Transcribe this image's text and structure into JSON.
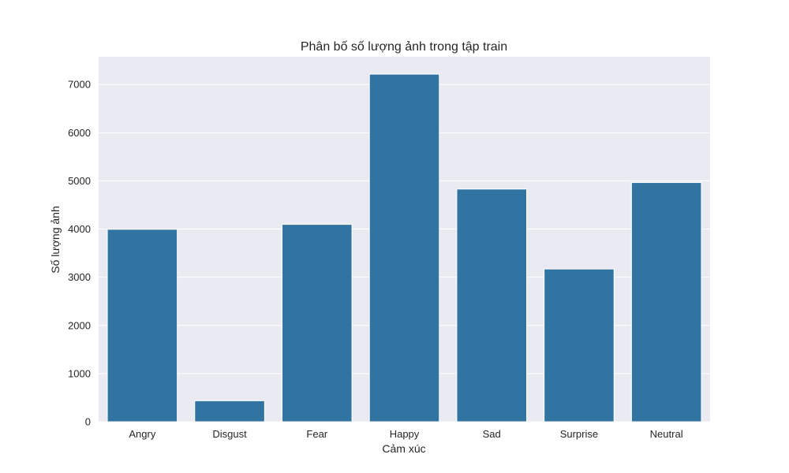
{
  "chart_data": {
    "type": "bar",
    "title": "Phân bố số lượng ảnh trong tập train",
    "xlabel": "Cảm xúc",
    "ylabel": "Số lượng ảnh",
    "categories": [
      "Angry",
      "Disgust",
      "Fear",
      "Happy",
      "Sad",
      "Surprise",
      "Neutral"
    ],
    "values": [
      3995,
      436,
      4097,
      7215,
      4830,
      3171,
      4965
    ],
    "ylim": [
      0,
      7576
    ],
    "yticks": [
      0,
      1000,
      2000,
      3000,
      4000,
      5000,
      6000,
      7000
    ],
    "ytick_labels": [
      "0",
      "1000",
      "2000",
      "3000",
      "4000",
      "5000",
      "6000",
      "7000"
    ],
    "grid": true,
    "legend": "none",
    "colors": {
      "bar": "#3274a1",
      "plot_background": "#eaeaf2",
      "grid": "#ffffff"
    }
  }
}
